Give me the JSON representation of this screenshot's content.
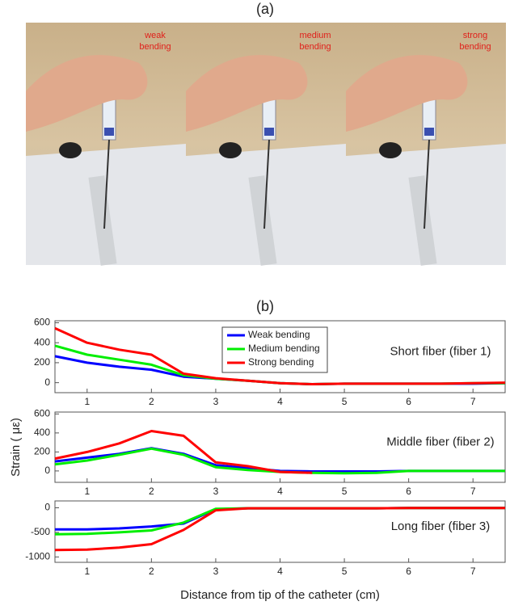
{
  "figure": {
    "panel_a_label": "(a)",
    "panel_b_label": "(b)",
    "photos": [
      {
        "caption": [
          "weak",
          "bending"
        ]
      },
      {
        "caption": [
          "medium",
          "bending"
        ]
      },
      {
        "caption": [
          "strong",
          "bending"
        ]
      }
    ]
  },
  "chart_data": [
    {
      "type": "line",
      "annotation": "Short fiber (fiber 1)",
      "legend": "upper-center",
      "x": [
        0.5,
        1,
        1.5,
        2,
        2.5,
        3,
        3.5,
        4,
        4.5,
        5,
        5.5,
        6,
        6.5,
        7,
        7.5
      ],
      "xlim": [
        0.5,
        7.5
      ],
      "xticks": [
        1,
        2,
        3,
        4,
        5,
        6,
        7
      ],
      "ylim": [
        -100,
        620
      ],
      "yticks": [
        0,
        200,
        400,
        600
      ],
      "series": [
        {
          "name": "Weak bending",
          "color": "#0000ff",
          "values": [
            265,
            200,
            160,
            130,
            60,
            40,
            20,
            -5,
            -15,
            -10,
            -10,
            -10,
            -10,
            -10,
            -5
          ]
        },
        {
          "name": "Medium bending",
          "color": "#00ee00",
          "values": [
            370,
            280,
            230,
            180,
            75,
            40,
            20,
            -5,
            -15,
            -10,
            -10,
            -10,
            -10,
            -5,
            -5
          ]
        },
        {
          "name": "Strong bending",
          "color": "#ff0000",
          "values": [
            545,
            400,
            330,
            280,
            90,
            45,
            20,
            -5,
            -15,
            -10,
            -10,
            -10,
            -10,
            -5,
            0
          ]
        }
      ]
    },
    {
      "type": "line",
      "annotation": "Middle fiber (fiber 2)",
      "ylabel": "Strain ( με)",
      "x": [
        0.5,
        1,
        1.5,
        2,
        2.5,
        3,
        3.5,
        4,
        4.5,
        5,
        5.5,
        6,
        6.5,
        7,
        7.5
      ],
      "xlim": [
        0.5,
        7.5
      ],
      "xticks": [
        1,
        2,
        3,
        4,
        5,
        6,
        7
      ],
      "ylim": [
        -120,
        620
      ],
      "yticks": [
        0,
        200,
        400,
        600
      ],
      "series": [
        {
          "color": "#0000ff",
          "values": [
            100,
            140,
            180,
            240,
            180,
            60,
            30,
            0,
            -5,
            -5,
            -5,
            0,
            0,
            0,
            0
          ]
        },
        {
          "color": "#00ee00",
          "values": [
            70,
            110,
            170,
            235,
            170,
            40,
            10,
            -10,
            -20,
            -25,
            -20,
            0,
            0,
            0,
            0
          ]
        },
        {
          "color": "#ff0000",
          "values": [
            130,
            200,
            290,
            420,
            370,
            90,
            50,
            -10,
            -20,
            null,
            null,
            null,
            null,
            null,
            null
          ]
        }
      ]
    },
    {
      "type": "line",
      "annotation": "Long fiber (fiber 3)",
      "xlabel": "Distance from tip of the catheter (cm)",
      "x": [
        0.5,
        1,
        1.5,
        2,
        2.5,
        3,
        3.5,
        4,
        4.5,
        5,
        5.5,
        6,
        6.5,
        7,
        7.5
      ],
      "xlim": [
        0.5,
        7.5
      ],
      "xticks": [
        1,
        2,
        3,
        4,
        5,
        6,
        7
      ],
      "ylim": [
        -1110,
        140
      ],
      "yticks": [
        -1000,
        -500,
        0
      ],
      "series": [
        {
          "color": "#0000ff",
          "values": [
            -440,
            -440,
            -420,
            -380,
            -320,
            -30,
            -10,
            -10,
            -10,
            -10,
            -10,
            -5,
            -5,
            -5,
            -5
          ]
        },
        {
          "color": "#00ee00",
          "values": [
            -540,
            -530,
            -500,
            -460,
            -300,
            -20,
            -10,
            -10,
            -10,
            -10,
            -10,
            -5,
            -5,
            -5,
            -5
          ]
        },
        {
          "color": "#ff0000",
          "values": [
            -860,
            -850,
            -810,
            -740,
            -450,
            -50,
            -10,
            -10,
            -10,
            -10,
            -10,
            -5,
            -5,
            -5,
            -5
          ]
        }
      ]
    }
  ]
}
